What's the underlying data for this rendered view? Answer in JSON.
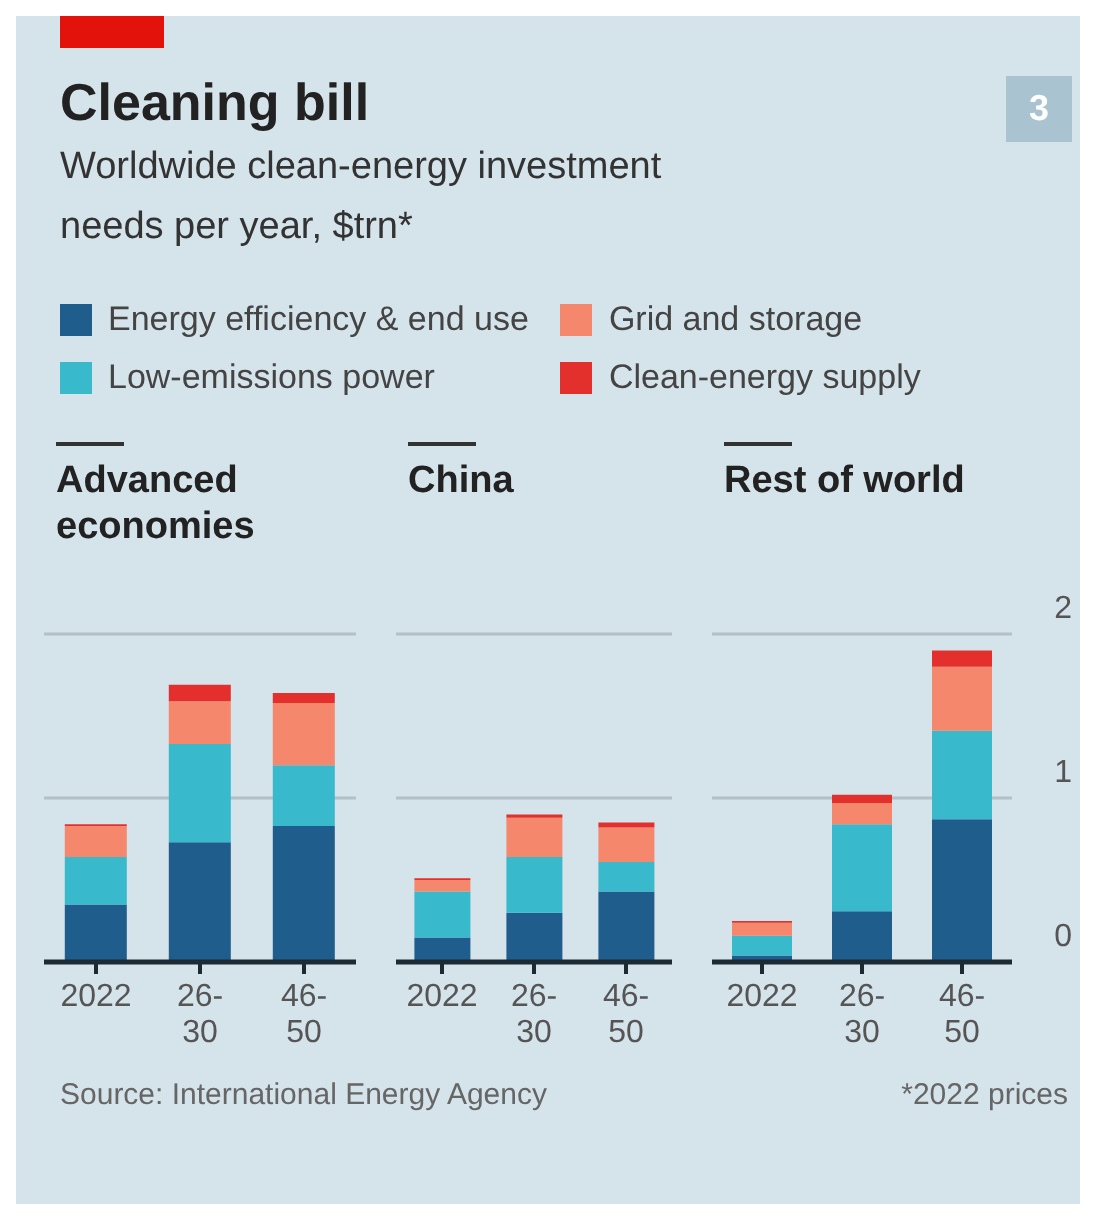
{
  "chart_data": [
    {
      "type": "bar",
      "title": "Cleaning bill",
      "subtitle": "Worldwide clean-energy investment needs per year, $trn*",
      "legend": "top",
      "stacked": true,
      "grid": "y",
      "tick_labels": "x",
      "ylim": [
        0,
        2
      ],
      "yticks": [
        0,
        1,
        2
      ],
      "categories": [
        "2022",
        "26-30",
        "46-50"
      ],
      "annotations": [
        "Advanced economies",
        "3",
        "Source: International Energy Agency",
        "*2022 prices"
      ],
      "series": [
        {
          "name": "Energy efficiency & end use",
          "color": "#1f5d8c",
          "values": [
            0.35,
            0.73,
            0.83
          ]
        },
        {
          "name": "Low-emissions power",
          "color": "#38b9cc",
          "values": [
            0.29,
            0.6,
            0.37
          ]
        },
        {
          "name": "Grid and storage",
          "color": "#f4876c",
          "values": [
            0.19,
            0.26,
            0.38
          ]
        },
        {
          "name": "Clean-energy supply",
          "color": "#e3302c",
          "values": [
            0.01,
            0.1,
            0.06
          ]
        }
      ]
    },
    {
      "type": "bar",
      "stacked": true,
      "grid": "y",
      "tick_labels": "x",
      "ylim": [
        0,
        2
      ],
      "yticks": [
        0,
        1,
        2
      ],
      "categories": [
        "2022",
        "26-30",
        "46-50"
      ],
      "annotations": [
        "China"
      ],
      "series": [
        {
          "color": "#1f5d8c",
          "values": [
            0.15,
            0.3,
            0.43
          ]
        },
        {
          "color": "#38b9cc",
          "values": [
            0.28,
            0.34,
            0.18
          ]
        },
        {
          "color": "#f4876c",
          "values": [
            0.07,
            0.24,
            0.21
          ]
        },
        {
          "color": "#e3302c",
          "values": [
            0.01,
            0.02,
            0.03
          ]
        }
      ]
    },
    {
      "type": "bar",
      "stacked": true,
      "grid": "y",
      "ylim": [
        0,
        2
      ],
      "yticks": [
        0,
        1,
        2
      ],
      "categories": [
        "2022",
        "26-30",
        "46-50"
      ],
      "annotations": [
        "Rest of world"
      ],
      "series": [
        {
          "color": "#1f5d8c",
          "values": [
            0.04,
            0.31,
            0.87
          ]
        },
        {
          "color": "#38b9cc",
          "values": [
            0.12,
            0.53,
            0.54
          ]
        },
        {
          "color": "#f4876c",
          "values": [
            0.08,
            0.13,
            0.39
          ]
        },
        {
          "color": "#e3302c",
          "values": [
            0.01,
            0.05,
            0.1
          ]
        }
      ]
    }
  ]
}
